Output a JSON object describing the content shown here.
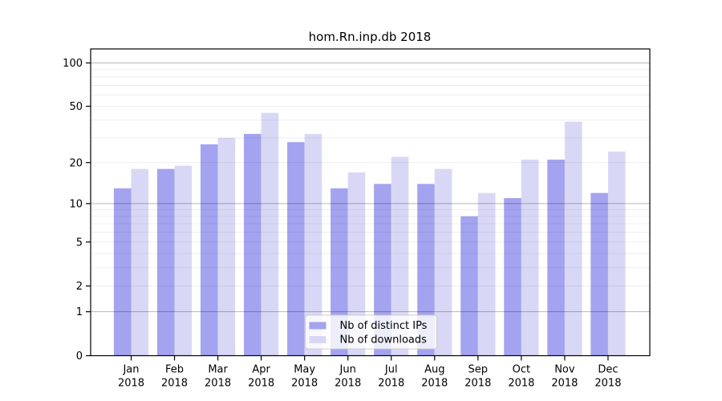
{
  "chart_data": {
    "type": "bar",
    "title": "hom.Rn.inp.db 2018",
    "categories": [
      [
        "Jan",
        "2018"
      ],
      [
        "Feb",
        "2018"
      ],
      [
        "Mar",
        "2018"
      ],
      [
        "Apr",
        "2018"
      ],
      [
        "May",
        "2018"
      ],
      [
        "Jun",
        "2018"
      ],
      [
        "Jul",
        "2018"
      ],
      [
        "Aug",
        "2018"
      ],
      [
        "Sep",
        "2018"
      ],
      [
        "Oct",
        "2018"
      ],
      [
        "Nov",
        "2018"
      ],
      [
        "Dec",
        "2018"
      ]
    ],
    "series": [
      {
        "name": "Nb of distinct IPs",
        "color": "#a3a3ef",
        "values": [
          13,
          18,
          27,
          32,
          28,
          13,
          14,
          14,
          8,
          11,
          21,
          12
        ]
      },
      {
        "name": "Nb of downloads",
        "color": "#d8d8f6",
        "values": [
          18,
          19,
          30,
          45,
          32,
          17,
          22,
          18,
          12,
          21,
          39,
          24
        ]
      }
    ],
    "y_scale": "log1p",
    "ylim": [
      0,
      125
    ],
    "yticks": [
      0,
      1,
      2,
      5,
      10,
      20,
      50,
      100
    ],
    "grid": {
      "major": [
        1,
        10,
        100
      ],
      "minor": [
        2,
        3,
        4,
        5,
        6,
        7,
        8,
        9,
        20,
        30,
        40,
        50,
        60,
        70,
        80,
        90
      ]
    },
    "legend": {
      "position": "lower-center"
    },
    "colors": {
      "axis": "#000000",
      "grid_major": "rgba(0,0,0,0.28)",
      "grid_minor": "rgba(0,0,0,0.075)",
      "legend_border": "#cccccc",
      "legend_bg": "rgba(255,255,255,0.8)"
    }
  }
}
